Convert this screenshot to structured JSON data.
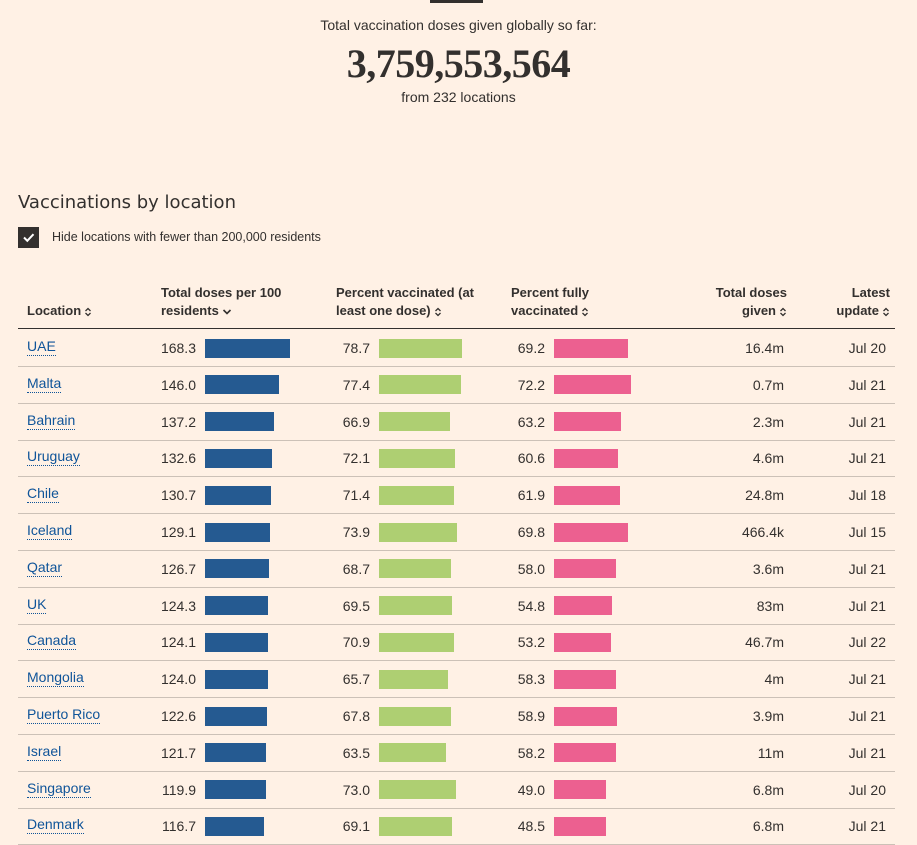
{
  "header": {
    "title": "Total vaccination doses given globally so far:",
    "total": "3,759,553,564",
    "subtitle": "from 232 locations"
  },
  "section_title": "Vaccinations by location",
  "filter": {
    "label": "Hide locations with fewer than 200,000 residents",
    "checked": true
  },
  "table": {
    "columns": [
      "Location",
      "Total doses per 100 residents",
      "Percent vaccinated (at least one dose)",
      "Percent fully vaccinated",
      "Total doses given",
      "Latest update"
    ],
    "rows": [
      [
        "UAE",
        168.3,
        78.7,
        69.2,
        "16.4m",
        "Jul 20"
      ],
      [
        "Malta",
        {
          "value": 146,
          "label": "146.0"
        },
        77.4,
        72.2,
        "0.7m",
        "Jul 21"
      ],
      [
        "Bahrain",
        137.2,
        66.9,
        63.2,
        "2.3m",
        "Jul 21"
      ],
      [
        "Uruguay",
        132.6,
        72.1,
        60.6,
        "4.6m",
        "Jul 21"
      ],
      [
        "Chile",
        130.7,
        71.4,
        61.9,
        "24.8m",
        "Jul 18"
      ],
      [
        "Iceland",
        129.1,
        73.9,
        69.8,
        "466.4k",
        "Jul 15"
      ],
      [
        "Qatar",
        126.7,
        68.7,
        {
          "value": 58,
          "label": "58.0"
        },
        "3.6m",
        "Jul 21"
      ],
      [
        "UK",
        124.3,
        69.5,
        54.8,
        "83m",
        "Jul 21"
      ],
      [
        "Canada",
        124.1,
        70.9,
        53.2,
        "46.7m",
        "Jul 22"
      ],
      [
        "Mongolia",
        {
          "value": 124,
          "label": "124.0"
        },
        65.7,
        58.3,
        "4m",
        "Jul 21"
      ],
      [
        "Puerto Rico",
        122.6,
        67.8,
        58.9,
        "3.9m",
        "Jul 21"
      ],
      [
        "Israel",
        121.7,
        63.5,
        58.2,
        "11m",
        "Jul 21"
      ],
      [
        "Singapore",
        119.9,
        {
          "value": 73,
          "label": "73.0"
        },
        {
          "value": 49,
          "label": "49.0"
        },
        "6.8m",
        "Jul 20"
      ],
      [
        "Denmark",
        116.7,
        69.1,
        48.5,
        "6.8m",
        "Jul 21"
      ]
    ]
  }
}
